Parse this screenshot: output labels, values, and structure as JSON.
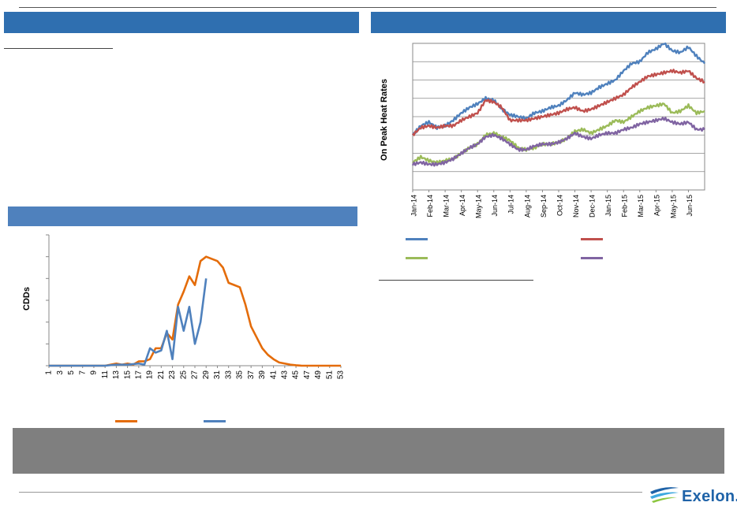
{
  "brand": {
    "name": "Exelon.",
    "color": "#1f63a8",
    "icon": "exelon-swoosh-icon"
  },
  "colors": {
    "banner": "#2f6fb0",
    "banner_light": "#4f81bd",
    "footer_box": "#7f7f7f",
    "blue": "#4f81bd",
    "red": "#c0504d",
    "green": "#9bbb59",
    "purple": "#8064a2",
    "orange": "#e46c0a"
  },
  "charts": [
    {
      "chart_data": {
        "type": "line",
        "ylabel": "On Peak Heat Rates",
        "x_tick_labels": [
          "Jan-14",
          "Feb-14",
          "Mar-14",
          "Apr-14",
          "May-14",
          "Jun-14",
          "Jul-14",
          "Aug-14",
          "Sep-14",
          "Oct-14",
          "Nov-14",
          "Dec-14",
          "Jan-15",
          "Feb-15",
          "Mar-15",
          "Apr-15",
          "May-15",
          "Jun-15"
        ],
        "x_range": [
          0,
          18
        ],
        "ylim": [
          0,
          8
        ],
        "grid": true,
        "legend_placement": "bottom",
        "series": [
          {
            "color": "#4f81bd",
            "x": [
              0,
              0.5,
              1,
              1.5,
              2,
              2.5,
              3,
              3.5,
              4,
              4.5,
              5,
              5.5,
              6,
              6.5,
              7,
              7.5,
              8,
              8.5,
              9,
              9.5,
              10,
              10.5,
              11,
              11.5,
              12,
              12.5,
              13,
              13.5,
              14,
              14.5,
              15,
              15.5,
              16,
              16.5,
              17,
              17.5,
              18
            ],
            "values": [
              3.0,
              3.5,
              3.7,
              3.4,
              3.5,
              3.8,
              4.2,
              4.5,
              4.7,
              5.0,
              4.9,
              4.4,
              4.1,
              4.0,
              3.9,
              4.2,
              4.3,
              4.5,
              4.6,
              4.9,
              5.3,
              5.2,
              5.3,
              5.6,
              5.8,
              6.0,
              6.5,
              6.9,
              7.0,
              7.5,
              7.7,
              8.0,
              7.6,
              7.5,
              7.8,
              7.3,
              6.9
            ]
          },
          {
            "color": "#c0504d",
            "x": [
              0,
              0.5,
              1,
              1.5,
              2,
              2.5,
              3,
              3.5,
              4,
              4.5,
              5,
              5.5,
              6,
              6.5,
              7,
              7.5,
              8,
              8.5,
              9,
              9.5,
              10,
              10.5,
              11,
              11.5,
              12,
              12.5,
              13,
              13.5,
              14,
              14.5,
              15,
              15.5,
              16,
              16.5,
              17,
              17.5,
              18
            ],
            "values": [
              3.0,
              3.4,
              3.5,
              3.4,
              3.5,
              3.5,
              3.8,
              4.0,
              4.2,
              4.9,
              4.8,
              4.5,
              3.8,
              3.8,
              3.8,
              3.9,
              4.0,
              4.1,
              4.2,
              4.4,
              4.5,
              4.3,
              4.4,
              4.6,
              4.8,
              5.0,
              5.2,
              5.6,
              5.9,
              6.2,
              6.3,
              6.4,
              6.5,
              6.4,
              6.5,
              6.1,
              5.9
            ]
          },
          {
            "color": "#9bbb59",
            "x": [
              0,
              0.5,
              1,
              1.5,
              2,
              2.5,
              3,
              3.5,
              4,
              4.5,
              5,
              5.5,
              6,
              6.5,
              7,
              7.5,
              8,
              8.5,
              9,
              9.5,
              10,
              10.5,
              11,
              11.5,
              12,
              12.5,
              13,
              13.5,
              14,
              14.5,
              15,
              15.5,
              16,
              16.5,
              17,
              17.5,
              18
            ],
            "values": [
              1.5,
              1.8,
              1.6,
              1.5,
              1.6,
              1.7,
              2.0,
              2.3,
              2.5,
              3.0,
              3.1,
              2.9,
              2.7,
              2.3,
              2.2,
              2.3,
              2.5,
              2.5,
              2.6,
              2.8,
              3.2,
              3.3,
              3.1,
              3.3,
              3.5,
              3.8,
              3.7,
              4.0,
              4.3,
              4.5,
              4.6,
              4.7,
              4.2,
              4.3,
              4.6,
              4.2,
              4.3
            ]
          },
          {
            "color": "#8064a2",
            "x": [
              0,
              0.5,
              1,
              1.5,
              2,
              2.5,
              3,
              3.5,
              4,
              4.5,
              5,
              5.5,
              6,
              6.5,
              7,
              7.5,
              8,
              8.5,
              9,
              9.5,
              10,
              10.5,
              11,
              11.5,
              12,
              12.5,
              13,
              13.5,
              14,
              14.5,
              15,
              15.5,
              16,
              16.5,
              17,
              17.5,
              18
            ],
            "values": [
              1.4,
              1.5,
              1.4,
              1.4,
              1.5,
              1.7,
              2.0,
              2.3,
              2.5,
              2.9,
              3.0,
              2.8,
              2.5,
              2.2,
              2.2,
              2.4,
              2.5,
              2.5,
              2.6,
              2.8,
              3.1,
              2.9,
              2.8,
              3.0,
              3.1,
              3.1,
              3.3,
              3.4,
              3.6,
              3.7,
              3.8,
              3.9,
              3.7,
              3.6,
              3.7,
              3.3,
              3.3
            ]
          }
        ]
      }
    },
    {
      "chart_data": {
        "type": "line",
        "ylabel": "CDDs",
        "x_tick_labels": [
          "1",
          "3",
          "5",
          "7",
          "9",
          "11",
          "13",
          "15",
          "17",
          "19",
          "21",
          "23",
          "25",
          "27",
          "29",
          "31",
          "33",
          "35",
          "37",
          "39",
          "41",
          "43",
          "45",
          "47",
          "49",
          "51",
          "53"
        ],
        "x_range": [
          1,
          53
        ],
        "ylim": [
          0,
          6
        ],
        "grid": false,
        "legend_placement": "bottom",
        "series": [
          {
            "color": "#e46c0a",
            "x": [
              1,
              5,
              9,
              11,
              12,
              13,
              14,
              15,
              16,
              17,
              18,
              19,
              20,
              21,
              22,
              23,
              24,
              25,
              26,
              27,
              28,
              29,
              30,
              31,
              32,
              33,
              34,
              35,
              36,
              37,
              38,
              39,
              40,
              41,
              42,
              43,
              44,
              45,
              46,
              48,
              50,
              52,
              53
            ],
            "values": [
              0,
              0,
              0,
              0,
              0.05,
              0.1,
              0.05,
              0.1,
              0.05,
              0.2,
              0.2,
              0.3,
              0.8,
              0.8,
              1.5,
              1.2,
              2.8,
              3.4,
              4.1,
              3.7,
              4.8,
              5.0,
              4.9,
              4.8,
              4.5,
              3.8,
              3.7,
              3.6,
              2.8,
              1.8,
              1.3,
              0.8,
              0.5,
              0.3,
              0.15,
              0.1,
              0.05,
              0.02,
              0,
              0,
              0,
              0,
              0
            ]
          },
          {
            "color": "#4f81bd",
            "x": [
              1,
              5,
              9,
              11,
              13,
              15,
              17,
              18,
              19,
              20,
              21,
              22,
              23,
              24,
              25,
              26,
              27,
              28,
              29
            ],
            "values": [
              0,
              0,
              0,
              0,
              0.05,
              0.05,
              0.1,
              0.05,
              0.8,
              0.6,
              0.7,
              1.6,
              0.3,
              2.7,
              1.6,
              2.7,
              1.0,
              2.0,
              4.0
            ]
          }
        ]
      }
    }
  ]
}
